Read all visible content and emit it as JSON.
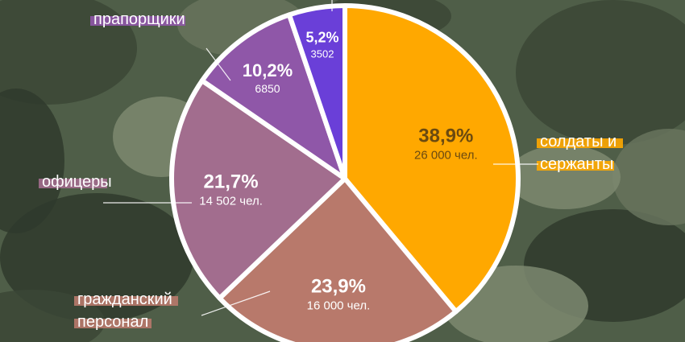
{
  "colors": {
    "background": "#4f5e48",
    "camo": [
      "#3b4636",
      "#67735d",
      "#7c8870",
      "#2f3a2d"
    ],
    "slice_soldiers": "#ffa800",
    "slice_civil": "#b8796b",
    "slice_officers": "#a26d8e",
    "slice_warrants": "#8f57a8",
    "slice_other": "#6a3fd8",
    "outline": "#ffffff",
    "text_dark": "#6b4a10",
    "text_light": "#ffffff"
  },
  "chart_data": {
    "type": "pie",
    "title": "",
    "start_angle_deg": 0,
    "direction": "clockwise",
    "slices": [
      {
        "label": "солдаты и сержанты",
        "percent_text": "38,9%",
        "count_text": "26 000 чел.",
        "value": 38.9,
        "color": "#ffa800"
      },
      {
        "label": "гражданский персонал",
        "percent_text": "23,9%",
        "count_text": "16 000 чел.",
        "value": 23.9,
        "color": "#b8796b"
      },
      {
        "label": "офицеры",
        "percent_text": "21,7%",
        "count_text": "14 502 чел.",
        "value": 21.7,
        "color": "#a26d8e"
      },
      {
        "label": "прапорщики",
        "percent_text": "10,2%",
        "count_text": "6850",
        "value": 10.2,
        "color": "#8f57a8"
      },
      {
        "label": "",
        "percent_text": "5,2%",
        "count_text": "3502",
        "value": 5.2,
        "color": "#6a3fd8"
      }
    ]
  }
}
